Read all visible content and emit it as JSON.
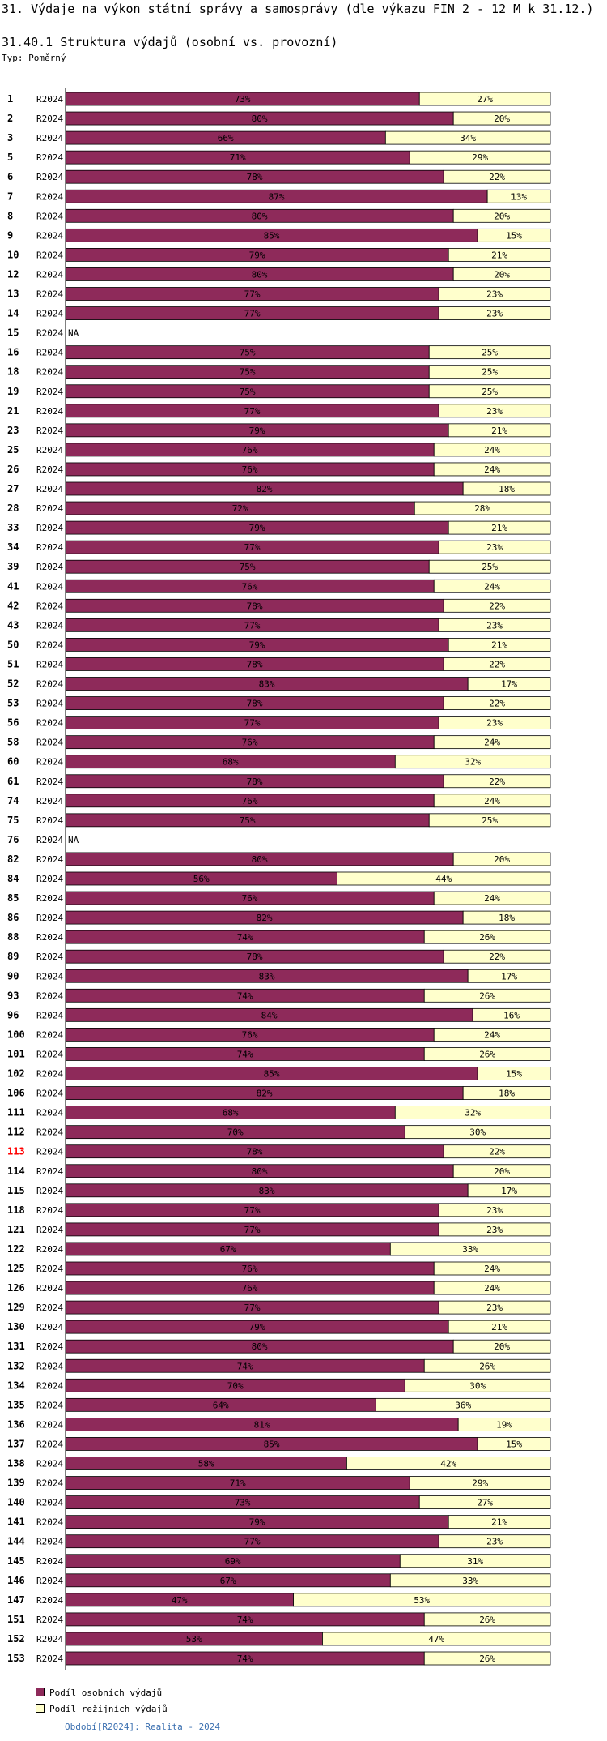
{
  "page": {
    "title": "31. Výdaje na výkon státní správy a samosprávy (dle výkazu FIN 2 - 12 M k 31.12.)",
    "subtitle": "31.40.1 Struktura výdajů (osobní vs. provozní)",
    "type_label": "Typ: Poměrný",
    "footer": "Období[R2024]: Realita - 2024"
  },
  "colors": {
    "personal": "#8e2a5a",
    "overhead": "#ffffcc",
    "highlight_label": "#ff0000"
  },
  "chart_data": {
    "type": "bar",
    "stacked": true,
    "orientation": "horizontal",
    "period": "R2024",
    "na_label": "NA",
    "highlight": [
      "113"
    ],
    "categories": [
      "1",
      "2",
      "3",
      "5",
      "6",
      "7",
      "8",
      "9",
      "10",
      "12",
      "13",
      "14",
      "15",
      "16",
      "18",
      "19",
      "21",
      "23",
      "25",
      "26",
      "27",
      "28",
      "33",
      "34",
      "39",
      "41",
      "42",
      "43",
      "50",
      "51",
      "52",
      "53",
      "56",
      "58",
      "60",
      "61",
      "74",
      "75",
      "76",
      "82",
      "84",
      "85",
      "86",
      "88",
      "89",
      "90",
      "93",
      "96",
      "100",
      "101",
      "102",
      "106",
      "111",
      "112",
      "113",
      "114",
      "115",
      "118",
      "121",
      "122",
      "125",
      "126",
      "129",
      "130",
      "131",
      "132",
      "134",
      "135",
      "136",
      "137",
      "138",
      "139",
      "140",
      "141",
      "144",
      "145",
      "146",
      "147",
      "151",
      "152",
      "153"
    ],
    "series": [
      {
        "name": "Podíl osobních výdajů",
        "values": [
          73,
          80,
          66,
          71,
          78,
          87,
          80,
          85,
          79,
          80,
          77,
          77,
          null,
          75,
          75,
          75,
          77,
          79,
          76,
          76,
          82,
          72,
          79,
          77,
          75,
          76,
          78,
          77,
          79,
          78,
          83,
          78,
          77,
          76,
          68,
          78,
          76,
          75,
          null,
          80,
          56,
          76,
          82,
          74,
          78,
          83,
          74,
          84,
          76,
          74,
          85,
          82,
          68,
          70,
          78,
          80,
          83,
          77,
          77,
          67,
          76,
          76,
          77,
          79,
          80,
          74,
          70,
          64,
          81,
          85,
          58,
          71,
          73,
          79,
          77,
          69,
          67,
          47,
          74,
          53,
          74
        ]
      },
      {
        "name": "Podíl režijních výdajů",
        "values": [
          27,
          20,
          34,
          29,
          22,
          13,
          20,
          15,
          21,
          20,
          23,
          23,
          null,
          25,
          25,
          25,
          23,
          21,
          24,
          24,
          18,
          28,
          21,
          23,
          25,
          24,
          22,
          23,
          21,
          22,
          17,
          22,
          23,
          24,
          32,
          22,
          24,
          25,
          null,
          20,
          44,
          24,
          18,
          26,
          22,
          17,
          26,
          16,
          24,
          26,
          15,
          18,
          32,
          30,
          22,
          20,
          17,
          23,
          23,
          33,
          24,
          24,
          23,
          21,
          20,
          26,
          30,
          36,
          19,
          15,
          42,
          29,
          27,
          21,
          23,
          31,
          33,
          53,
          26,
          47,
          26
        ]
      }
    ],
    "value_suffix": "%",
    "xlim": [
      0,
      100
    ],
    "legend": [
      "Podíl osobních výdajů",
      "Podíl režijních výdajů"
    ]
  }
}
